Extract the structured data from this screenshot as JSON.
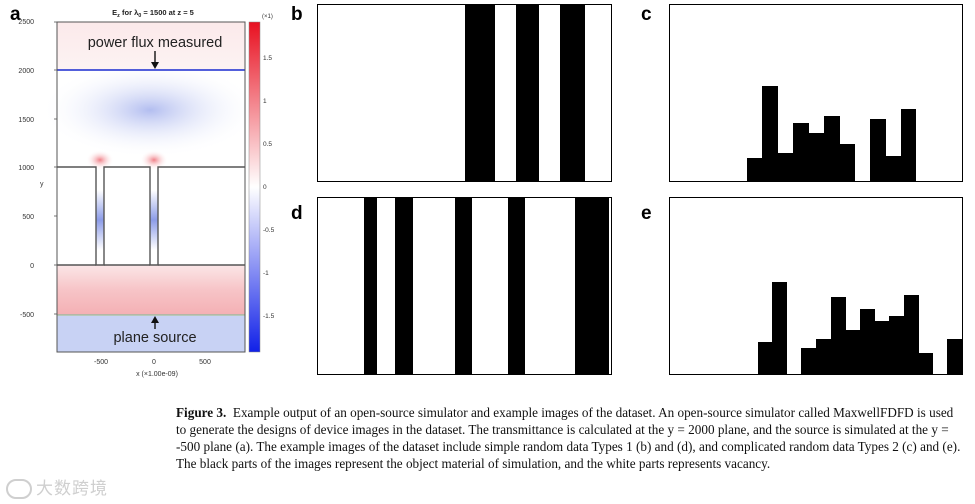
{
  "panels": {
    "a": {
      "letter": "a",
      "title": "E",
      "title_sub": "z",
      "title_rest": " for λ",
      "title_sub2": "0",
      "title_tail": " = 1500  at  z = 5",
      "y_axis_label": "y",
      "x_axis_label": "x (×1.00e-09)",
      "y_ticks": [
        "2500",
        "2000",
        "1500",
        "1000",
        "500",
        "0",
        "-500"
      ],
      "x_ticks": [
        "-500",
        "0",
        "500"
      ],
      "colorbar_exponent": "(×1)",
      "colorbar_ticks": [
        "1.5",
        "1",
        "0.5",
        "0",
        "-0.5",
        "-1",
        "-1.5"
      ],
      "annotation_top": "power flux measured",
      "annotation_bottom": "plane source",
      "colors": {
        "positive": "#e8202a",
        "negative": "#2030e0",
        "monitor_line": "#1a2bd0",
        "source_band": "#c8d2f4"
      }
    },
    "b": {
      "letter": "b",
      "type": "simple random data Type 1",
      "black_stripes_fraction": [
        [
          0.503,
          0.605
        ],
        [
          0.676,
          0.753
        ],
        [
          0.827,
          0.913
        ]
      ]
    },
    "c": {
      "letter": "c",
      "type": "complicated random data Type 2",
      "bar_heights_fraction": [
        0,
        0,
        0,
        0,
        0,
        0.13,
        0.54,
        0.16,
        0.33,
        0.27,
        0.37,
        0.21,
        0,
        0.35,
        0.14,
        0.41,
        0,
        0,
        0
      ]
    },
    "d": {
      "letter": "d",
      "type": "simple random data Type 1",
      "black_stripes_fraction": [
        [
          0.157,
          0.201
        ],
        [
          0.263,
          0.325
        ],
        [
          0.466,
          0.525
        ],
        [
          0.648,
          0.705
        ],
        [
          0.876,
          0.992
        ]
      ]
    },
    "e": {
      "letter": "e",
      "type": "complicated random data Type 2",
      "bar_heights_fraction": [
        0,
        0,
        0,
        0,
        0,
        0,
        0.18,
        0.52,
        0,
        0.15,
        0.2,
        0.44,
        0.25,
        0.37,
        0.3,
        0.33,
        0.45,
        0.12,
        0,
        0.2
      ]
    }
  },
  "caption": {
    "label": "Figure 3.",
    "text": "Example output of an open-source simulator and example images of the dataset. An open-source simulator called MaxwellFDFD is used to generate the designs of device images in the dataset. The transmittance is calculated at the y = 2000 plane, and the source is simulated at the y = -500 plane (a). The example images of the dataset include simple random data Types 1 (b) and (d), and complicated random data Types 2 (c) and (e). The black parts of the images represent the object material of simulation, and the white parts represents vacancy."
  },
  "watermark": "大数跨境"
}
